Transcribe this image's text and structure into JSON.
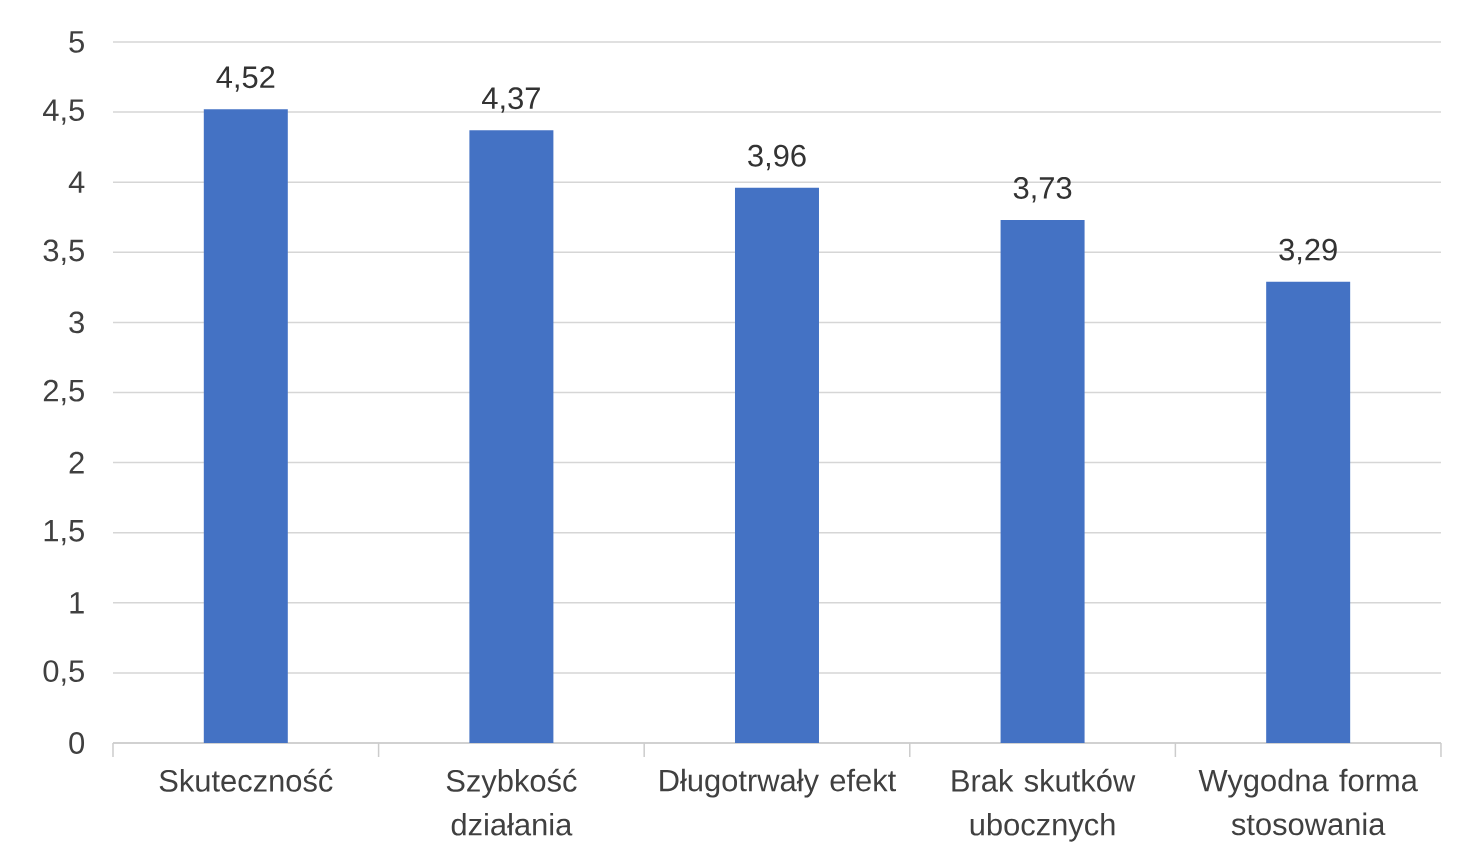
{
  "chart_data": {
    "type": "bar",
    "categories": [
      "Skuteczność",
      "Szybkość działania",
      "Długotrwały efekt",
      "Brak skutków ubocznych",
      "Wygodna forma stosowania"
    ],
    "values": [
      4.52,
      4.37,
      3.96,
      3.73,
      3.29
    ],
    "value_labels": [
      "4,52",
      "4,37",
      "3,96",
      "3,73",
      "3,29"
    ],
    "color": "#4472c4",
    "ylim": [
      0,
      5
    ],
    "yticks": [
      0,
      {
        "value": 0.5,
        "label": "0,5"
      },
      1,
      {
        "value": 1.5,
        "label": "1,5"
      },
      2,
      {
        "value": 2.5,
        "label": "2,5"
      },
      3,
      {
        "value": 3.5,
        "label": "3,5"
      },
      4,
      {
        "value": 4.5,
        "label": "4,5"
      },
      5
    ],
    "grid": "y"
  }
}
